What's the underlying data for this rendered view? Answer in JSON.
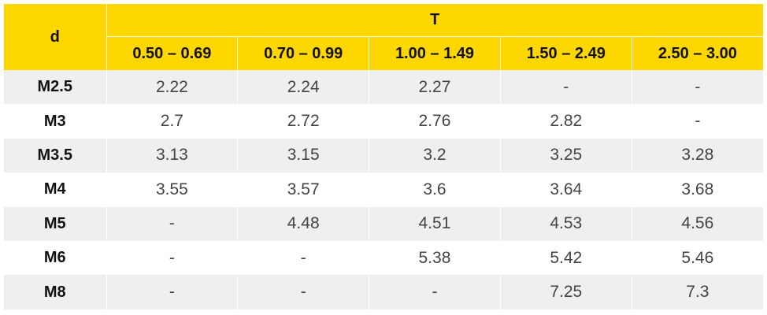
{
  "table": {
    "row_header": "d",
    "group_header": "T",
    "columns": [
      "0.50 – 0.69",
      "0.70 – 0.99",
      "1.00 – 1.49",
      "1.50 – 2.49",
      "2.50 – 3.00"
    ],
    "rows": [
      {
        "label": "M2.5",
        "values": [
          "2.22",
          "2.24",
          "2.27",
          "-",
          "-"
        ]
      },
      {
        "label": "M3",
        "values": [
          "2.7",
          "2.72",
          "2.76",
          "2.82",
          "-"
        ]
      },
      {
        "label": "M3.5",
        "values": [
          "3.13",
          "3.15",
          "3.2",
          "3.25",
          "3.28"
        ]
      },
      {
        "label": "M4",
        "values": [
          "3.55",
          "3.57",
          "3.6",
          "3.64",
          "3.68"
        ]
      },
      {
        "label": "M5",
        "values": [
          "-",
          "4.48",
          "4.51",
          "4.53",
          "4.56"
        ]
      },
      {
        "label": "M6",
        "values": [
          "-",
          "-",
          "5.38",
          "5.42",
          "5.46"
        ]
      },
      {
        "label": "M8",
        "values": [
          "-",
          "-",
          "-",
          "7.25",
          "7.3"
        ]
      }
    ]
  },
  "colors": {
    "header_bg": "#FFD700",
    "stripe_bg": "#EEEFF1"
  }
}
